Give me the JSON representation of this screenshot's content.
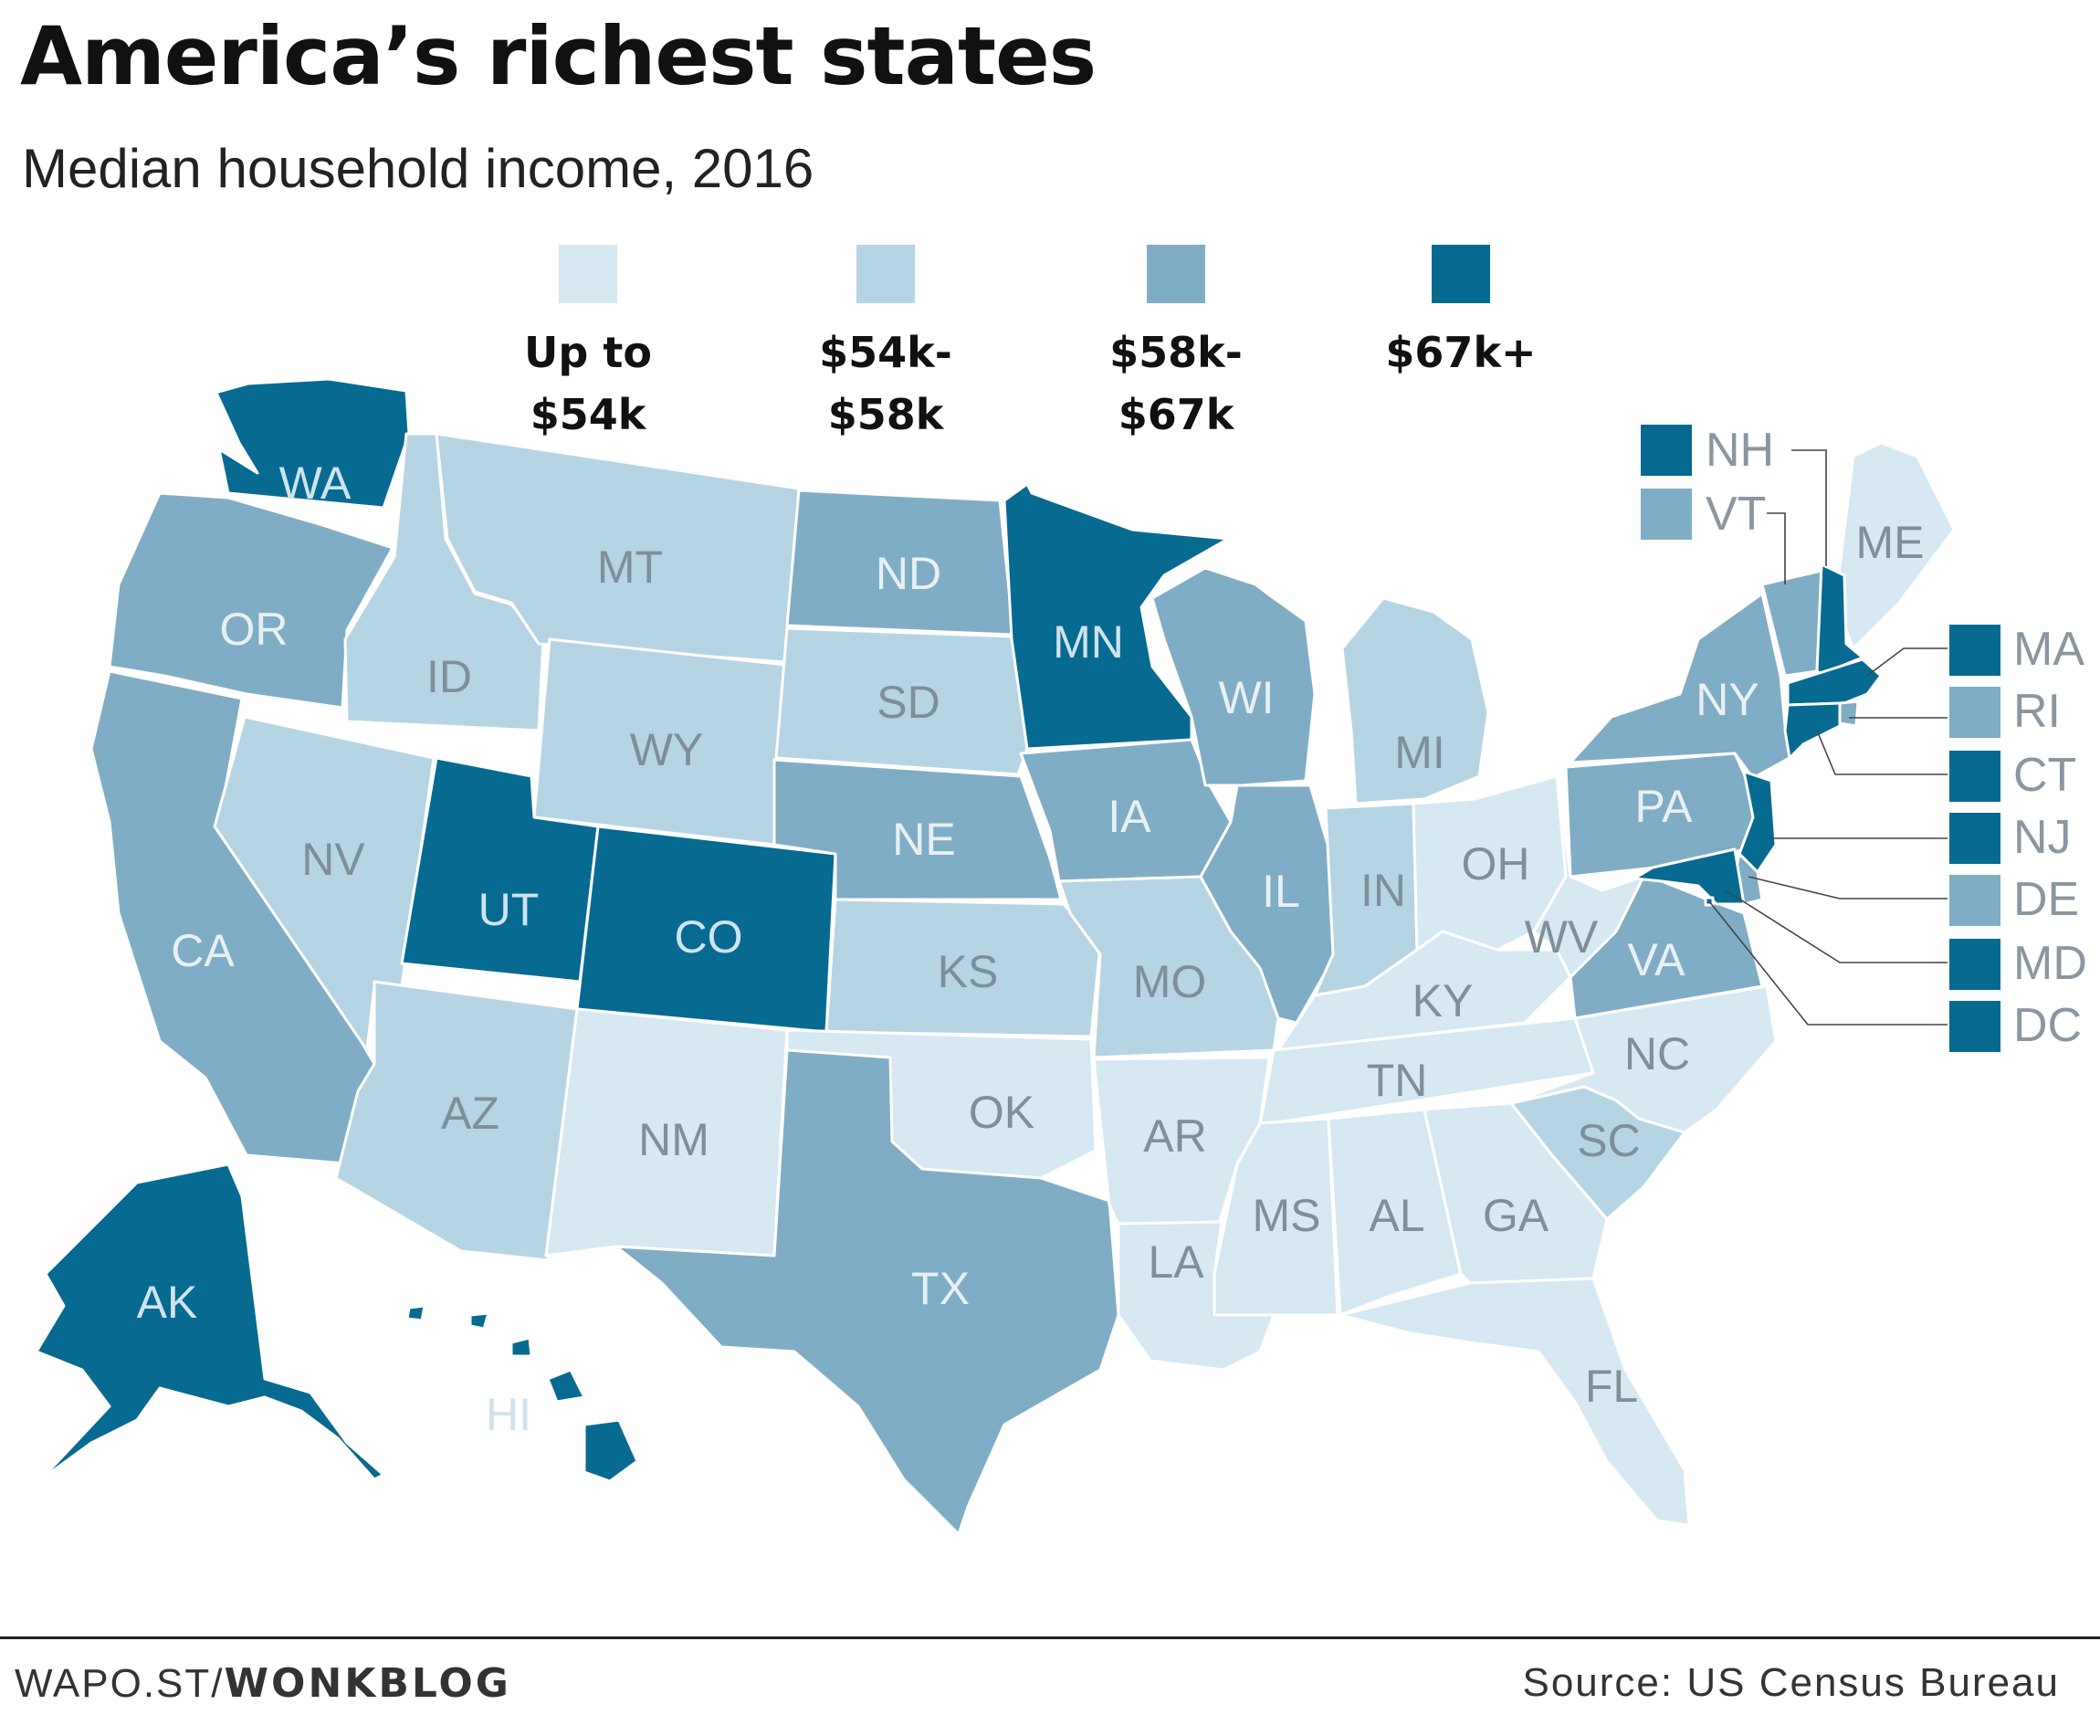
{
  "header": {
    "title": "America’s richest states",
    "subtitle": "Median household income, 2016"
  },
  "legend": [
    {
      "label": "Up to\n$54k",
      "color": "#d6e8f2"
    },
    {
      "label": "$54k-\n$58k",
      "color": "#b5d5e5"
    },
    {
      "label": "$58k-\n$67k",
      "color": "#7fadc5"
    },
    {
      "label": "$67k+",
      "color": "#076a91"
    }
  ],
  "states": {
    "WA": {
      "label": "WA",
      "bin": 3
    },
    "OR": {
      "label": "OR",
      "bin": 2
    },
    "CA": {
      "label": "CA",
      "bin": 2
    },
    "ID": {
      "label": "ID",
      "bin": 1
    },
    "NV": {
      "label": "NV",
      "bin": 1
    },
    "MT": {
      "label": "MT",
      "bin": 1
    },
    "WY": {
      "label": "WY",
      "bin": 1
    },
    "UT": {
      "label": "UT",
      "bin": 3
    },
    "CO": {
      "label": "CO",
      "bin": 3
    },
    "AZ": {
      "label": "AZ",
      "bin": 1
    },
    "NM": {
      "label": "NM",
      "bin": 0
    },
    "ND": {
      "label": "ND",
      "bin": 2
    },
    "SD": {
      "label": "SD",
      "bin": 1
    },
    "NE": {
      "label": "NE",
      "bin": 2
    },
    "KS": {
      "label": "KS",
      "bin": 1
    },
    "OK": {
      "label": "OK",
      "bin": 0
    },
    "TX": {
      "label": "TX",
      "bin": 2
    },
    "MN": {
      "label": "MN",
      "bin": 3
    },
    "IA": {
      "label": "IA",
      "bin": 2
    },
    "MO": {
      "label": "MO",
      "bin": 1
    },
    "AR": {
      "label": "AR",
      "bin": 0
    },
    "LA": {
      "label": "LA",
      "bin": 0
    },
    "WI": {
      "label": "WI",
      "bin": 2
    },
    "IL": {
      "label": "IL",
      "bin": 2
    },
    "MI": {
      "label": "MI",
      "bin": 1
    },
    "IN": {
      "label": "IN",
      "bin": 1
    },
    "OH": {
      "label": "OH",
      "bin": 0
    },
    "KY": {
      "label": "KY",
      "bin": 0
    },
    "TN": {
      "label": "TN",
      "bin": 0
    },
    "MS": {
      "label": "MS",
      "bin": 0
    },
    "AL": {
      "label": "AL",
      "bin": 0
    },
    "GA": {
      "label": "GA",
      "bin": 0
    },
    "FL": {
      "label": "FL",
      "bin": 0
    },
    "SC": {
      "label": "SC",
      "bin": 1
    },
    "NC": {
      "label": "NC",
      "bin": 0
    },
    "VA": {
      "label": "VA",
      "bin": 2
    },
    "WV": {
      "label": "WV",
      "bin": 0
    },
    "PA": {
      "label": "PA",
      "bin": 2
    },
    "NY": {
      "label": "NY",
      "bin": 2
    },
    "ME": {
      "label": "ME",
      "bin": 0
    },
    "AK": {
      "label": "AK",
      "bin": 3
    },
    "HI": {
      "label": "HI",
      "bin": 3
    },
    "NH": {
      "label": "NH",
      "bin": 3
    },
    "VT": {
      "label": "VT",
      "bin": 2
    },
    "MA": {
      "label": "MA",
      "bin": 3
    },
    "RI": {
      "label": "RI",
      "bin": 2
    },
    "CT": {
      "label": "CT",
      "bin": 3
    },
    "NJ": {
      "label": "NJ",
      "bin": 3
    },
    "DE": {
      "label": "DE",
      "bin": 2
    },
    "MD": {
      "label": "MD",
      "bin": 3
    },
    "DC": {
      "label": "DC",
      "bin": 3
    }
  },
  "footer": {
    "credit_prefix": "WAPO.ST/",
    "credit_bold": "WONKBLOG",
    "source": "Source: US Census Bureau"
  }
}
